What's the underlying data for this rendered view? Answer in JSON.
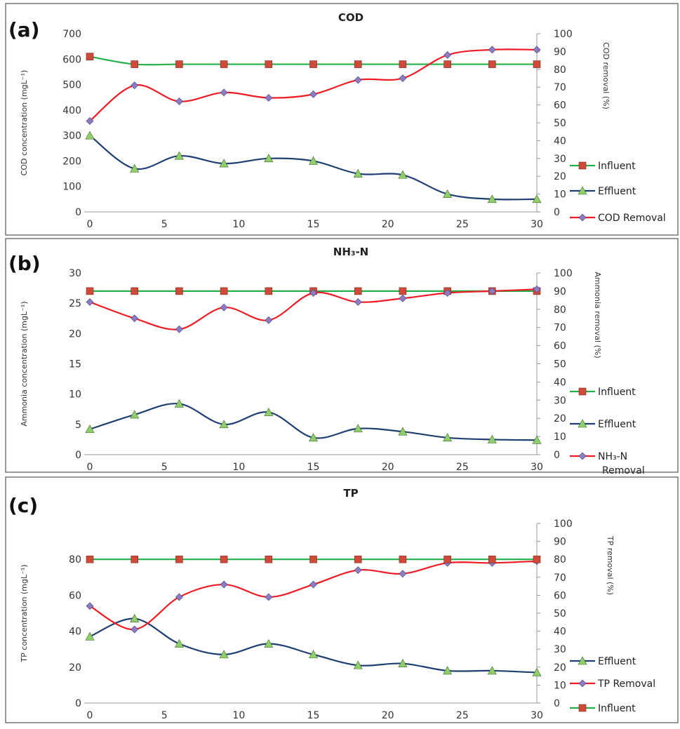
{
  "chart_data": [
    {
      "type": "line",
      "panel_label": "(a)",
      "title": "COD",
      "ylabel": "COD concentration (mgL⁻¹)",
      "y2label": "COD removal (%)",
      "ylim": [
        0,
        700
      ],
      "y2lim": [
        0,
        100
      ],
      "xlim": [
        0,
        30
      ],
      "x_ticks": [
        0,
        5,
        10,
        15,
        20,
        25,
        30
      ],
      "y_ticks": [
        0,
        100,
        200,
        300,
        400,
        500,
        600,
        700
      ],
      "y2_ticks": [
        0,
        10,
        20,
        30,
        40,
        50,
        60,
        70,
        80,
        90,
        100
      ],
      "x": [
        0,
        3,
        6,
        9,
        12,
        15,
        18,
        21,
        24,
        27,
        30
      ],
      "series": [
        {
          "name": "Influent",
          "axis": "left",
          "color": "#22b04b",
          "marker": "square",
          "marker_color": "#d04a3a",
          "values": [
            610,
            580,
            580,
            580,
            580,
            580,
            580,
            580,
            580,
            580,
            580
          ]
        },
        {
          "name": "Effluent",
          "axis": "left",
          "color": "#1f3f73",
          "marker": "triangle",
          "marker_color": "#8fce6a",
          "values": [
            300,
            170,
            220,
            190,
            210,
            200,
            150,
            145,
            70,
            50,
            50
          ]
        },
        {
          "name": "COD Removal",
          "axis": "right",
          "color": "#ee1c24",
          "marker": "diamond",
          "marker_color": "#8e7cc3",
          "values": [
            51,
            71,
            62,
            67,
            64,
            66,
            74,
            75,
            88,
            91,
            91
          ]
        }
      ],
      "legend": "right"
    },
    {
      "type": "line",
      "panel_label": "(b)",
      "title": "NH₃-N",
      "ylabel": "Ammonia concentration (mgL⁻¹)",
      "y2label": "Ammonia removal (%)",
      "ylim": [
        0,
        30
      ],
      "y2lim": [
        0,
        100
      ],
      "xlim": [
        0,
        30
      ],
      "x_ticks": [
        0,
        5,
        10,
        15,
        20,
        25,
        30
      ],
      "y_ticks": [
        0,
        5,
        10,
        15,
        20,
        25,
        30
      ],
      "y2_ticks": [
        0,
        10,
        20,
        30,
        40,
        50,
        60,
        70,
        80,
        90,
        100
      ],
      "x": [
        0,
        3,
        6,
        9,
        12,
        15,
        18,
        21,
        24,
        27,
        30
      ],
      "series": [
        {
          "name": "Influent",
          "axis": "left",
          "color": "#22b04b",
          "marker": "square",
          "marker_color": "#d04a3a",
          "values": [
            27,
            27,
            27,
            27,
            27,
            27,
            27,
            27,
            27,
            27,
            27
          ]
        },
        {
          "name": "Effluent",
          "axis": "left",
          "color": "#1f3f73",
          "marker": "triangle",
          "marker_color": "#8fce6a",
          "values": [
            4.2,
            6.6,
            8.4,
            5.0,
            7.0,
            2.8,
            4.3,
            3.8,
            2.8,
            2.5,
            2.4
          ]
        },
        {
          "name": "NH₃-N Removal",
          "axis": "right",
          "color": "#ee1c24",
          "marker": "diamond",
          "marker_color": "#8e7cc3",
          "values": [
            84,
            75,
            69,
            81,
            74,
            89,
            84,
            86,
            89,
            90,
            91
          ]
        }
      ],
      "legend": "right"
    },
    {
      "type": "line",
      "panel_label": "(c)",
      "title": "TP",
      "ylabel": "TP concentration (mgL⁻¹)",
      "y2label": "TP removal (%)",
      "ylim": [
        0,
        100
      ],
      "y2lim": [
        0,
        100
      ],
      "xlim": [
        0,
        30
      ],
      "x_ticks": [
        0,
        5,
        10,
        15,
        20,
        25,
        30
      ],
      "y_ticks": [
        0,
        20,
        40,
        60,
        80
      ],
      "y2_ticks": [
        0,
        10,
        20,
        30,
        40,
        50,
        60,
        70,
        80,
        90,
        100
      ],
      "x": [
        0,
        3,
        6,
        9,
        12,
        15,
        18,
        21,
        24,
        27,
        30
      ],
      "series": [
        {
          "name": "Effluent",
          "axis": "left",
          "color": "#1f3f73",
          "marker": "triangle",
          "marker_color": "#8fce6a",
          "values": [
            37,
            47,
            33,
            27,
            33,
            27,
            21,
            22,
            18,
            18,
            17
          ]
        },
        {
          "name": "TP Removal",
          "axis": "right",
          "color": "#ee1c24",
          "marker": "diamond",
          "marker_color": "#8e7cc3",
          "values": [
            54,
            41,
            59,
            66,
            59,
            66,
            74,
            72,
            78,
            78,
            79
          ]
        },
        {
          "name": "Influent",
          "axis": "left",
          "color": "#22b04b",
          "marker": "square",
          "marker_color": "#d04a3a",
          "values": [
            80,
            80,
            80,
            80,
            80,
            80,
            80,
            80,
            80,
            80,
            80
          ]
        }
      ],
      "legend": "right"
    }
  ]
}
